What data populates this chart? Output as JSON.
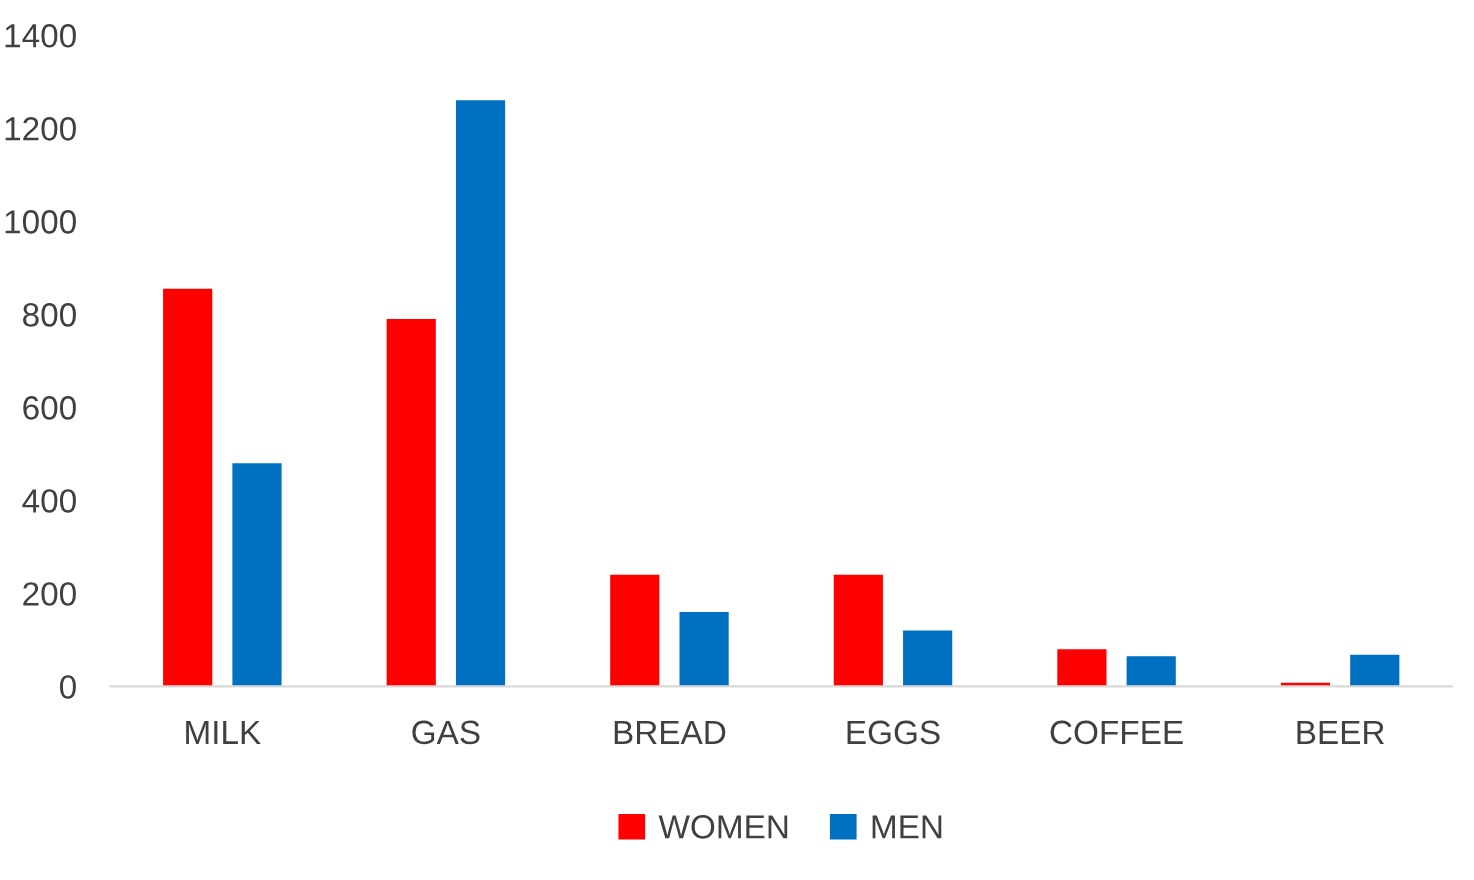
{
  "chart_data": {
    "type": "bar",
    "categories": [
      "MILK",
      "GAS",
      "BREAD",
      "EGGS",
      "COFFEE",
      "BEER"
    ],
    "series": [
      {
        "name": "WOMEN",
        "color": "#ff0000",
        "values": [
          855,
          790,
          240,
          240,
          80,
          8
        ]
      },
      {
        "name": "MEN",
        "color": "#0070c0",
        "values": [
          480,
          1260,
          160,
          120,
          65,
          68
        ]
      }
    ],
    "ylim": [
      0,
      1400
    ],
    "yticks": [
      0,
      200,
      400,
      600,
      800,
      1000,
      1200,
      1400
    ],
    "grid": false,
    "legend": "bottom"
  }
}
